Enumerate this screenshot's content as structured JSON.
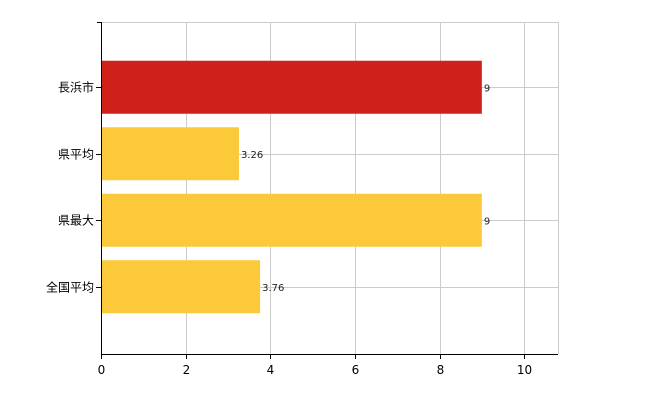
{
  "chart_data": {
    "type": "bar",
    "orientation": "horizontal",
    "categories": [
      "長浜市",
      "県平均",
      "県最大",
      "全国平均"
    ],
    "values": [
      9,
      3.26,
      9,
      3.76
    ],
    "data_labels": [
      "9",
      "3.26",
      "9",
      "3.76"
    ],
    "bar_colors": [
      "#d0201a",
      "#fcc93a",
      "#fcc93a",
      "#fcc93a"
    ],
    "xlim": [
      0,
      10.8
    ],
    "xticks": [
      0,
      2,
      4,
      6,
      8,
      10
    ],
    "xtick_labels": [
      "0",
      "2",
      "4",
      "6",
      "8",
      "10"
    ],
    "grid": true,
    "legend": "none",
    "title": "",
    "xlabel": "",
    "ylabel": ""
  }
}
